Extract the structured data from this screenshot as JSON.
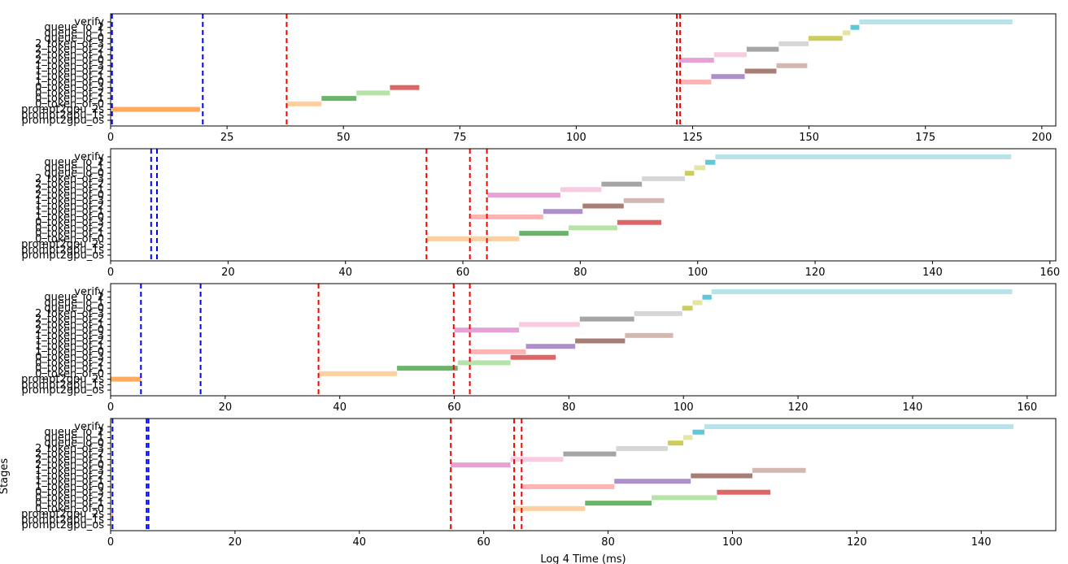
{
  "chart_data": [
    {
      "type": "timeline",
      "xlim": [
        0,
        203
      ],
      "xticks": [
        0,
        25,
        50,
        75,
        100,
        125,
        150,
        175,
        200
      ],
      "xlabel": "",
      "ylabel": "",
      "stages": [
        "prompt2gpu_os",
        "prompt2gpu_1s",
        "prompt2gpu_2s",
        "0_token_of_0",
        "0_token_of_1",
        "0_token_of_2",
        "0_token_of_3",
        "1_token_of_0",
        "1_token_of_1",
        "1_token_of_2",
        "1_token_of_3",
        "2_token_of_0",
        "2_token_of_1",
        "2_token_of_2",
        "2_token_of_3",
        "queue_io_0",
        "queue_io_1",
        "queue_io_2",
        "verify"
      ],
      "bars": [
        {
          "stage": "prompt2gpu_2s",
          "start": 0.3,
          "end": 19.2
        },
        {
          "stage": "0_token_of_0",
          "start": 37.8,
          "end": 45.3
        },
        {
          "stage": "0_token_of_1",
          "start": 45.3,
          "end": 52.8
        },
        {
          "stage": "0_token_of_2",
          "start": 52.8,
          "end": 60.0
        },
        {
          "stage": "0_token_of_3",
          "start": 60.0,
          "end": 66.3
        },
        {
          "stage": "1_token_of_0",
          "start": 122.0,
          "end": 129.0
        },
        {
          "stage": "1_token_of_1",
          "start": 129.0,
          "end": 136.2
        },
        {
          "stage": "1_token_of_2",
          "start": 136.2,
          "end": 143.0
        },
        {
          "stage": "1_token_of_3",
          "start": 143.0,
          "end": 149.6
        },
        {
          "stage": "2_token_of_0",
          "start": 122.0,
          "end": 129.6
        },
        {
          "stage": "2_token_of_1",
          "start": 129.6,
          "end": 136.6
        },
        {
          "stage": "2_token_of_2",
          "start": 136.6,
          "end": 143.5
        },
        {
          "stage": "2_token_of_3",
          "start": 143.5,
          "end": 149.9
        },
        {
          "stage": "queue_io_0",
          "start": 149.9,
          "end": 157.2
        },
        {
          "stage": "queue_io_1",
          "start": 157.2,
          "end": 158.9
        },
        {
          "stage": "queue_io_2",
          "start": 158.9,
          "end": 160.8
        },
        {
          "stage": "verify",
          "start": 160.8,
          "end": 193.7
        }
      ],
      "vlines": [
        {
          "x": 0.3,
          "color": "blue"
        },
        {
          "x": 19.8,
          "color": "blue"
        },
        {
          "x": 37.8,
          "color": "red"
        },
        {
          "x": 121.6,
          "color": "red"
        },
        {
          "x": 122.3,
          "color": "red"
        }
      ]
    },
    {
      "type": "timeline",
      "xlim": [
        0,
        161
      ],
      "xticks": [
        0,
        20,
        40,
        60,
        80,
        100,
        120,
        140,
        160
      ],
      "xlabel": "",
      "ylabel": "",
      "stages": [
        "prompt2gpu_os",
        "prompt2gpu_1s",
        "prompt2gpu_2s",
        "0_token_of_0",
        "0_token_of_1",
        "0_token_of_2",
        "0_token_of_3",
        "1_token_of_0",
        "1_token_of_1",
        "1_token_of_2",
        "1_token_of_3",
        "2_token_of_0",
        "2_token_of_1",
        "2_token_of_2",
        "2_token_of_3",
        "queue_io_0",
        "queue_io_1",
        "queue_io_2",
        "verify"
      ],
      "bars": [
        {
          "stage": "0_token_of_0",
          "start": 53.8,
          "end": 69.6
        },
        {
          "stage": "0_token_of_1",
          "start": 69.6,
          "end": 78.0
        },
        {
          "stage": "0_token_of_2",
          "start": 78.0,
          "end": 86.3
        },
        {
          "stage": "0_token_of_3",
          "start": 86.3,
          "end": 93.8
        },
        {
          "stage": "1_token_of_0",
          "start": 61.4,
          "end": 73.7
        },
        {
          "stage": "1_token_of_1",
          "start": 73.7,
          "end": 80.4
        },
        {
          "stage": "1_token_of_2",
          "start": 80.4,
          "end": 87.4
        },
        {
          "stage": "1_token_of_3",
          "start": 87.4,
          "end": 94.3
        },
        {
          "stage": "2_token_of_0",
          "start": 64.2,
          "end": 76.6
        },
        {
          "stage": "2_token_of_1",
          "start": 76.6,
          "end": 83.6
        },
        {
          "stage": "2_token_of_2",
          "start": 83.6,
          "end": 90.5
        },
        {
          "stage": "2_token_of_3",
          "start": 90.5,
          "end": 97.8
        },
        {
          "stage": "queue_io_0",
          "start": 97.8,
          "end": 99.4
        },
        {
          "stage": "queue_io_1",
          "start": 99.4,
          "end": 101.3
        },
        {
          "stage": "queue_io_2",
          "start": 101.3,
          "end": 103.0
        },
        {
          "stage": "verify",
          "start": 103.0,
          "end": 153.4
        }
      ],
      "vlines": [
        {
          "x": 6.9,
          "color": "blue"
        },
        {
          "x": 7.9,
          "color": "blue"
        },
        {
          "x": 53.8,
          "color": "red"
        },
        {
          "x": 61.2,
          "color": "red"
        },
        {
          "x": 64.1,
          "color": "red"
        }
      ]
    },
    {
      "type": "timeline",
      "xlim": [
        0,
        165
      ],
      "xticks": [
        0,
        20,
        40,
        60,
        80,
        100,
        120,
        140,
        160
      ],
      "xlabel": "",
      "ylabel": "",
      "stages": [
        "prompt2gpu_os",
        "prompt2gpu_1s",
        "prompt2gpu_2s",
        "0_token_of_0",
        "0_token_of_1",
        "0_token_of_2",
        "0_token_of_3",
        "1_token_of_0",
        "1_token_of_1",
        "1_token_of_2",
        "1_token_of_3",
        "2_token_of_0",
        "2_token_of_1",
        "2_token_of_2",
        "2_token_of_3",
        "queue_io_0",
        "queue_io_1",
        "queue_io_2",
        "verify"
      ],
      "bars": [
        {
          "stage": "prompt2gpu_2s",
          "start": 0.0,
          "end": 5.3
        },
        {
          "stage": "0_token_of_0",
          "start": 36.3,
          "end": 50.0
        },
        {
          "stage": "0_token_of_1",
          "start": 50.0,
          "end": 60.6
        },
        {
          "stage": "0_token_of_2",
          "start": 60.6,
          "end": 69.8
        },
        {
          "stage": "0_token_of_3",
          "start": 69.8,
          "end": 77.7
        },
        {
          "stage": "1_token_of_0",
          "start": 62.8,
          "end": 72.5
        },
        {
          "stage": "1_token_of_1",
          "start": 72.5,
          "end": 81.1
        },
        {
          "stage": "1_token_of_2",
          "start": 81.1,
          "end": 89.8
        },
        {
          "stage": "1_token_of_3",
          "start": 89.8,
          "end": 98.2
        },
        {
          "stage": "2_token_of_0",
          "start": 60.0,
          "end": 71.3
        },
        {
          "stage": "2_token_of_1",
          "start": 71.3,
          "end": 81.9
        },
        {
          "stage": "2_token_of_2",
          "start": 81.9,
          "end": 91.4
        },
        {
          "stage": "2_token_of_3",
          "start": 91.4,
          "end": 99.8
        },
        {
          "stage": "queue_io_0",
          "start": 99.8,
          "end": 101.6
        },
        {
          "stage": "queue_io_1",
          "start": 101.6,
          "end": 103.3
        },
        {
          "stage": "queue_io_2",
          "start": 103.3,
          "end": 104.9
        },
        {
          "stage": "verify",
          "start": 104.9,
          "end": 157.4
        }
      ],
      "vlines": [
        {
          "x": 5.3,
          "color": "blue"
        },
        {
          "x": 15.7,
          "color": "blue"
        },
        {
          "x": 36.3,
          "color": "red"
        },
        {
          "x": 59.9,
          "color": "red"
        },
        {
          "x": 62.7,
          "color": "red"
        }
      ]
    },
    {
      "type": "timeline",
      "xlim": [
        0,
        152
      ],
      "xticks": [
        0,
        20,
        40,
        60,
        80,
        100,
        120,
        140
      ],
      "xlabel": "Log 4 Time (ms)",
      "ylabel": "Stages",
      "stages": [
        "prompt2gpu_os",
        "prompt2gpu_1s",
        "prompt2gpu_2s",
        "0_token_of_0",
        "0_token_of_1",
        "0_token_of_2",
        "0_token_of_3",
        "1_token_of_0",
        "1_token_of_1",
        "1_token_of_2",
        "1_token_of_3",
        "2_token_of_0",
        "2_token_of_1",
        "2_token_of_2",
        "2_token_of_3",
        "queue_io_0",
        "queue_io_1",
        "queue_io_2",
        "verify"
      ],
      "bars": [
        {
          "stage": "prompt2gpu_2s",
          "start": 0.2,
          "end": 0.4
        },
        {
          "stage": "0_token_of_0",
          "start": 64.9,
          "end": 76.3
        },
        {
          "stage": "0_token_of_1",
          "start": 76.3,
          "end": 87.0
        },
        {
          "stage": "0_token_of_2",
          "start": 87.0,
          "end": 97.5
        },
        {
          "stage": "0_token_of_3",
          "start": 97.5,
          "end": 106.1
        },
        {
          "stage": "1_token_of_0",
          "start": 66.0,
          "end": 81.0
        },
        {
          "stage": "1_token_of_1",
          "start": 81.0,
          "end": 93.3
        },
        {
          "stage": "1_token_of_2",
          "start": 93.3,
          "end": 103.2
        },
        {
          "stage": "1_token_of_3",
          "start": 103.2,
          "end": 111.8
        },
        {
          "stage": "2_token_of_0",
          "start": 54.7,
          "end": 64.3
        },
        {
          "stage": "2_token_of_1",
          "start": 64.3,
          "end": 72.8
        },
        {
          "stage": "2_token_of_2",
          "start": 72.8,
          "end": 81.3
        },
        {
          "stage": "2_token_of_3",
          "start": 81.3,
          "end": 89.6
        },
        {
          "stage": "queue_io_0",
          "start": 89.6,
          "end": 92.1
        },
        {
          "stage": "queue_io_1",
          "start": 92.1,
          "end": 93.6
        },
        {
          "stage": "queue_io_2",
          "start": 93.6,
          "end": 95.5
        },
        {
          "stage": "verify",
          "start": 95.5,
          "end": 145.2
        }
      ],
      "vlines": [
        {
          "x": 0.3,
          "color": "blue"
        },
        {
          "x": 5.8,
          "color": "blue"
        },
        {
          "x": 6.1,
          "color": "blue"
        },
        {
          "x": 54.7,
          "color": "red"
        },
        {
          "x": 64.9,
          "color": "red"
        },
        {
          "x": 66.1,
          "color": "red"
        }
      ]
    }
  ],
  "stage_colors": {
    "prompt2gpu_os": "#1f77b4",
    "prompt2gpu_1s": "#aec7e8",
    "prompt2gpu_2s": "#ffaa5c",
    "0_token_of_0": "#ffcf9f",
    "0_token_of_1": "#6ab56a",
    "0_token_of_2": "#b6e3a8",
    "0_token_of_3": "#dd6565",
    "1_token_of_0": "#ffb4b4",
    "1_token_of_1": "#ae8fcb",
    "1_token_of_2": "#a77d76",
    "1_token_of_3": "#d3b8b2",
    "2_token_of_0": "#e7a2d5",
    "2_token_of_1": "#f8cbe1",
    "2_token_of_2": "#a5a5a5",
    "2_token_of_3": "#d6d6d6",
    "queue_io_0": "#cdcd5e",
    "queue_io_1": "#e4e4a6",
    "queue_io_2": "#5ec8d8",
    "verify": "#b9e3ea"
  },
  "line_colors": {
    "blue": "#0000ff",
    "red": "#ff0000"
  }
}
